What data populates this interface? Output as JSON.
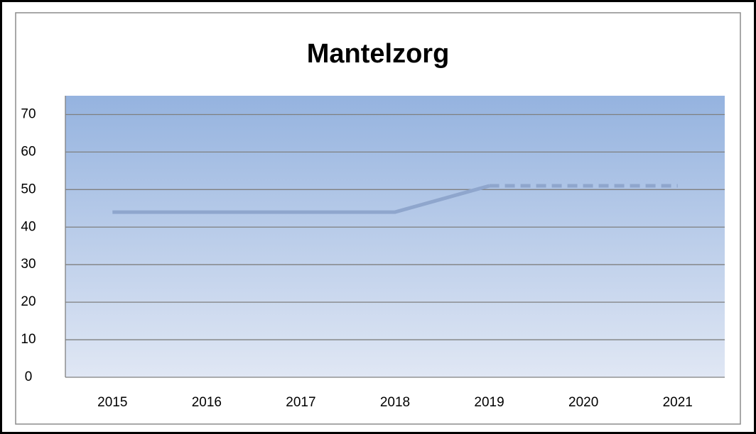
{
  "chart_data": {
    "type": "line",
    "title": "Mantelzorg",
    "categories": [
      "2015",
      "2016",
      "2017",
      "2018",
      "2019",
      "2020",
      "2021"
    ],
    "series": [
      {
        "color": "#8fa6cd",
        "dashed": false,
        "values": [
          44,
          44,
          44,
          44,
          51,
          null,
          null
        ]
      },
      {
        "color": "#8fa6cd",
        "dashed": true,
        "values": [
          null,
          null,
          null,
          null,
          51,
          51,
          51
        ]
      }
    ],
    "ylim": [
      0,
      75
    ],
    "yticks": [
      0,
      10,
      20,
      30,
      40,
      50,
      60,
      70
    ],
    "grid": true
  }
}
